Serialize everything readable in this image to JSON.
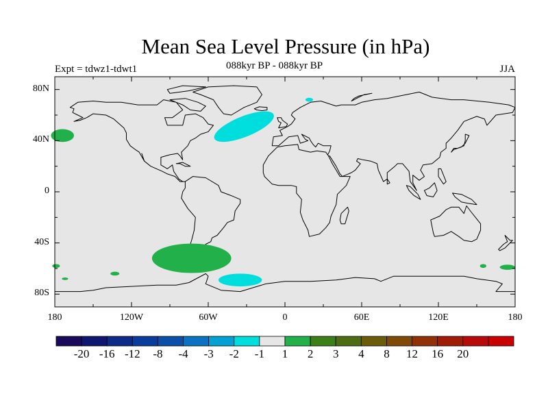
{
  "title": "Mean Sea Level Pressure (in hPa)",
  "experiment_label": "Expt = tdwz1-tdwt1",
  "period_label": "088kyr BP - 088kyr BP",
  "season_label": "JJA",
  "map": {
    "projection": "cylindrical equidistant",
    "lon_range": [
      -180,
      180
    ],
    "lat_range": [
      -90,
      90
    ],
    "ocean_color": "#e6e6e6",
    "coastline_color": "#000000",
    "lat_ticks": [
      {
        "lat": 80,
        "label": "80N"
      },
      {
        "lat": 40,
        "label": "40N"
      },
      {
        "lat": 0,
        "label": "0"
      },
      {
        "lat": -40,
        "label": "40S"
      },
      {
        "lat": -80,
        "label": "80S"
      }
    ],
    "lon_ticks": [
      {
        "lon": -180,
        "label": "180"
      },
      {
        "lon": -120,
        "label": "120W"
      },
      {
        "lon": -60,
        "label": "60W"
      },
      {
        "lon": 0,
        "label": "0"
      },
      {
        "lon": 60,
        "label": "60E"
      },
      {
        "lon": 120,
        "label": "120E"
      },
      {
        "lon": 180,
        "label": "180"
      }
    ]
  },
  "anomaly_regions": [
    {
      "name": "north-pacific-positive",
      "sign": "positive",
      "color": "#22b04a",
      "lon": -174,
      "lat": 44,
      "lon_radius": 9,
      "lat_radius": 5
    },
    {
      "name": "north-atlantic-negative",
      "sign": "negative",
      "color": "#00dddd",
      "lon": -32,
      "lat": 51,
      "lon_radius": 25,
      "lat_radius": 8,
      "rotate": -22
    },
    {
      "name": "norway-negative",
      "sign": "negative",
      "color": "#00dddd",
      "lon": 19,
      "lat": 72,
      "lon_radius": 3,
      "lat_radius": 1.5
    },
    {
      "name": "south-pacific-positive",
      "sign": "positive",
      "color": "#22b04a",
      "lon": -73,
      "lat": -52,
      "lon_radius": 31,
      "lat_radius": 11.5
    },
    {
      "name": "weddell-negative",
      "sign": "negative",
      "color": "#00dddd",
      "lon": -35,
      "lat": -69,
      "lon_radius": 17,
      "lat_radius": 5
    },
    {
      "name": "dateline-south-positive",
      "sign": "positive",
      "color": "#22b04a",
      "lon": -179,
      "lat": -58,
      "lon_radius": 3,
      "lat_radius": 1.5
    },
    {
      "name": "south-pacific-small-positive-1",
      "sign": "positive",
      "color": "#22b04a",
      "lon": -172,
      "lat": -68,
      "lon_radius": 2.5,
      "lat_radius": 1
    },
    {
      "name": "south-pacific-small-positive-2",
      "sign": "positive",
      "color": "#22b04a",
      "lon": -133,
      "lat": -64,
      "lon_radius": 3.5,
      "lat_radius": 1.5
    },
    {
      "name": "south-indian-positive",
      "sign": "positive",
      "color": "#22b04a",
      "lon": 155,
      "lat": -58,
      "lon_radius": 2.5,
      "lat_radius": 1.5
    },
    {
      "name": "south-dateline-east-positive",
      "sign": "positive",
      "color": "#22b04a",
      "lon": 174,
      "lat": -59,
      "lon_radius": 6,
      "lat_radius": 2
    }
  ],
  "colorbar": {
    "colors": [
      "#1a0a5c",
      "#0f1670",
      "#0c2a86",
      "#0a3c9c",
      "#0b4fa8",
      "#0a72c0",
      "#03a0d4",
      "#00dddd",
      "#e6e6e6",
      "#22b04a",
      "#3c7e18",
      "#4e6d12",
      "#6a5c0a",
      "#7e4a06",
      "#903206",
      "#a01c06",
      "#b80a0a",
      "#c80000"
    ],
    "labels": [
      "-20",
      "-16",
      "-12",
      "-8",
      "-4",
      "-3",
      "-2",
      "-1",
      "1",
      "2",
      "3",
      "4",
      "8",
      "12",
      "16",
      "20"
    ]
  }
}
